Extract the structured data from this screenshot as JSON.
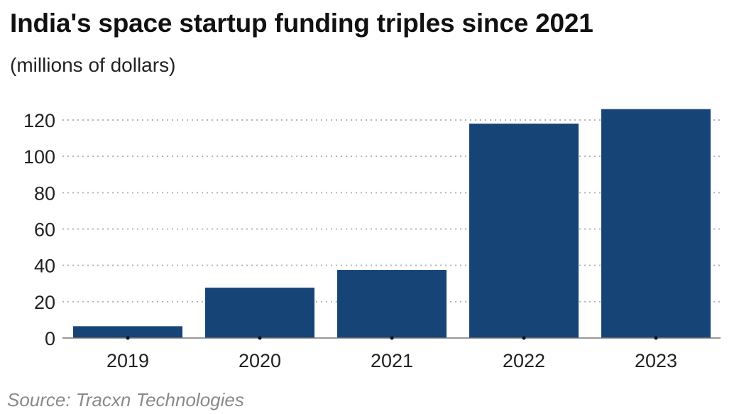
{
  "chart_data": {
    "type": "bar",
    "title": "India's space startup funding triples since 2021",
    "subtitle": "(millions of dollars)",
    "source": "Source: Tracxn Technologies",
    "categories": [
      "2019",
      "2020",
      "2021",
      "2022",
      "2023"
    ],
    "values": [
      6.5,
      27.7,
      37.5,
      118,
      126
    ],
    "xlabel": "",
    "ylabel": "",
    "ylim": [
      0,
      120
    ],
    "yticks": [
      0,
      20,
      40,
      60,
      80,
      100,
      120
    ],
    "grid": "horizontal dotted",
    "bar_color": "#174477"
  }
}
